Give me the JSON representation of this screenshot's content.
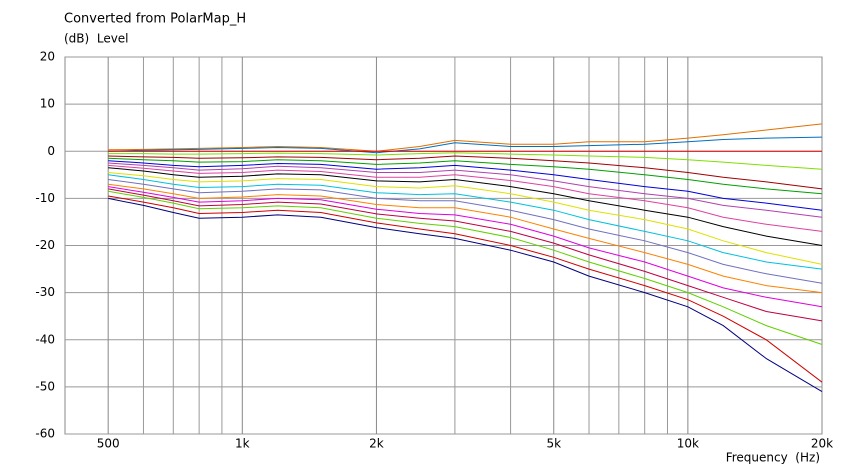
{
  "chart_data": {
    "type": "line",
    "title": "Converted from PolarMap_H",
    "ylabel": "(dB)  Level",
    "xlabel": "Frequency  (Hz)",
    "xscale": "log",
    "grid": true,
    "xlim": [
      400,
      20000
    ],
    "ylim": [
      -60,
      20
    ],
    "xticks": [
      {
        "value": 500,
        "label": "500"
      },
      {
        "value": 1000,
        "label": "1k"
      },
      {
        "value": 2000,
        "label": "2k"
      },
      {
        "value": 5000,
        "label": "5k"
      },
      {
        "value": 10000,
        "label": "10k"
      },
      {
        "value": 20000,
        "label": "20k"
      }
    ],
    "xminor": [
      600,
      700,
      800,
      900,
      3000,
      4000,
      6000,
      7000,
      8000,
      9000
    ],
    "yticks": [
      -60,
      -50,
      -40,
      -30,
      -20,
      -10,
      0,
      10,
      20
    ],
    "x": [
      500,
      600,
      700,
      800,
      1000,
      1200,
      1500,
      2000,
      2500,
      3000,
      4000,
      5000,
      6000,
      8000,
      10000,
      12000,
      15000,
      20000
    ],
    "series": [
      {
        "color": "#e07000",
        "values": [
          0.3,
          0.4,
          0.5,
          0.6,
          0.8,
          1,
          0.8,
          0,
          1,
          2.3,
          1.5,
          1.5,
          2,
          2,
          2.8,
          3.5,
          4.5,
          5.8
        ]
      },
      {
        "color": "#0070c0",
        "values": [
          0,
          0.2,
          0.3,
          0.4,
          0.6,
          0.8,
          0.6,
          -0.3,
          0.5,
          1.8,
          1,
          1,
          1.2,
          1.5,
          2,
          2.5,
          2.8,
          3
        ]
      },
      {
        "color": "#e00000",
        "values": [
          0,
          0,
          0,
          0,
          0,
          0,
          0,
          0,
          0,
          0,
          0,
          0,
          0,
          0,
          0,
          0,
          0,
          0
        ]
      },
      {
        "color": "#80e000",
        "values": [
          -0.5,
          -0.5,
          -0.6,
          -0.6,
          -0.5,
          -0.4,
          -0.5,
          -0.8,
          -0.5,
          -0.3,
          -0.6,
          -0.8,
          -1,
          -1.3,
          -1.8,
          -2.3,
          -3,
          -3.8
        ]
      },
      {
        "color": "#a00000",
        "values": [
          -1,
          -1.2,
          -1.3,
          -1.5,
          -1.4,
          -1.2,
          -1.3,
          -1.8,
          -1.5,
          -1,
          -1.5,
          -2,
          -2.5,
          -3.5,
          -4.5,
          -5.5,
          -6.5,
          -8
        ]
      },
      {
        "color": "#00a000",
        "values": [
          -1.5,
          -1.8,
          -2,
          -2.3,
          -2.2,
          -1.8,
          -2,
          -2.8,
          -2.5,
          -2,
          -2.8,
          -3.3,
          -3.8,
          -5,
          -6,
          -7,
          -8,
          -9
        ]
      },
      {
        "color": "#0000e0",
        "values": [
          -2,
          -2.5,
          -3,
          -3.3,
          -3,
          -2.6,
          -2.8,
          -3.8,
          -3.5,
          -3,
          -4,
          -5,
          -6,
          -7.5,
          -8.5,
          -10,
          -11,
          -12.5
        ]
      },
      {
        "color": "#b040b0",
        "values": [
          -2.5,
          -3,
          -3.5,
          -4,
          -3.7,
          -3.2,
          -3.5,
          -4.5,
          -4.5,
          -4,
          -5,
          -6.3,
          -7.5,
          -9,
          -10,
          -11.5,
          -12.5,
          -14
        ]
      },
      {
        "color": "#e040a0",
        "values": [
          -3,
          -3.6,
          -4.2,
          -4.7,
          -4.5,
          -4,
          -4.3,
          -5.5,
          -5.5,
          -5,
          -6.2,
          -7.5,
          -9,
          -10.5,
          -12,
          -14,
          -15.5,
          -17
        ]
      },
      {
        "color": "#000000",
        "values": [
          -3.5,
          -4.2,
          -5,
          -5.5,
          -5.3,
          -4.8,
          -5,
          -6.3,
          -6.5,
          -6,
          -7.5,
          -9,
          -10.5,
          -12.5,
          -14,
          -16,
          -18,
          -20
        ]
      },
      {
        "color": "#e0e000",
        "values": [
          -4.5,
          -5.2,
          -6,
          -6.5,
          -6.3,
          -5.8,
          -6,
          -7.5,
          -7.8,
          -7.3,
          -9,
          -10.8,
          -12.5,
          -14.5,
          -16.5,
          -19,
          -21.5,
          -24
        ]
      },
      {
        "color": "#00c0e0",
        "values": [
          -5,
          -6,
          -7,
          -7.7,
          -7.5,
          -7,
          -7.2,
          -8.8,
          -9.2,
          -9,
          -10.8,
          -12.5,
          -14.5,
          -17,
          -19,
          -21.5,
          -23.5,
          -25
        ]
      },
      {
        "color": "#7070c0",
        "values": [
          -6,
          -7,
          -8,
          -8.8,
          -8.5,
          -8,
          -8.2,
          -10,
          -10.5,
          -10.5,
          -12.5,
          -14.5,
          -16.5,
          -19,
          -21.5,
          -24,
          -26,
          -28
        ]
      },
      {
        "color": "#ff8000",
        "values": [
          -7,
          -8,
          -9,
          -10,
          -9.7,
          -9.2,
          -9.5,
          -11.3,
          -12,
          -12,
          -14,
          -16.5,
          -18.5,
          -21.5,
          -24,
          -26.5,
          -28.5,
          -30
        ]
      },
      {
        "color": "#e000e0",
        "values": [
          -7.5,
          -8.7,
          -9.8,
          -10.8,
          -10.5,
          -10,
          -10.3,
          -12.3,
          -13.2,
          -13.5,
          -15.5,
          -18,
          -20.5,
          -23.5,
          -26.5,
          -29,
          -31,
          -33
        ]
      },
      {
        "color": "#c00040",
        "values": [
          -8,
          -9.3,
          -10.5,
          -11.6,
          -11.3,
          -10.8,
          -11.2,
          -13.3,
          -14.2,
          -14.8,
          -17,
          -19.5,
          -22,
          -25.5,
          -28.5,
          -31,
          -34,
          -36
        ]
      },
      {
        "color": "#60d000",
        "values": [
          -8.5,
          -9.8,
          -11,
          -12.2,
          -12,
          -11.6,
          -12,
          -14.2,
          -15.3,
          -16,
          -18.3,
          -21,
          -23.5,
          -27,
          -30,
          -33,
          -37,
          -41
        ]
      },
      {
        "color": "#d00000",
        "values": [
          -9.5,
          -10.8,
          -12,
          -13.2,
          -13,
          -12.5,
          -13,
          -15.2,
          -16.5,
          -17.5,
          -20,
          -22.5,
          -25,
          -28.5,
          -31.5,
          -35,
          -40,
          -49
        ]
      },
      {
        "color": "#000080",
        "values": [
          -10,
          -11.5,
          -13,
          -14.2,
          -14,
          -13.5,
          -14,
          -16.2,
          -17.5,
          -18.5,
          -21,
          -23.5,
          -26.5,
          -30,
          -33,
          -37,
          -44,
          -51
        ]
      }
    ]
  }
}
